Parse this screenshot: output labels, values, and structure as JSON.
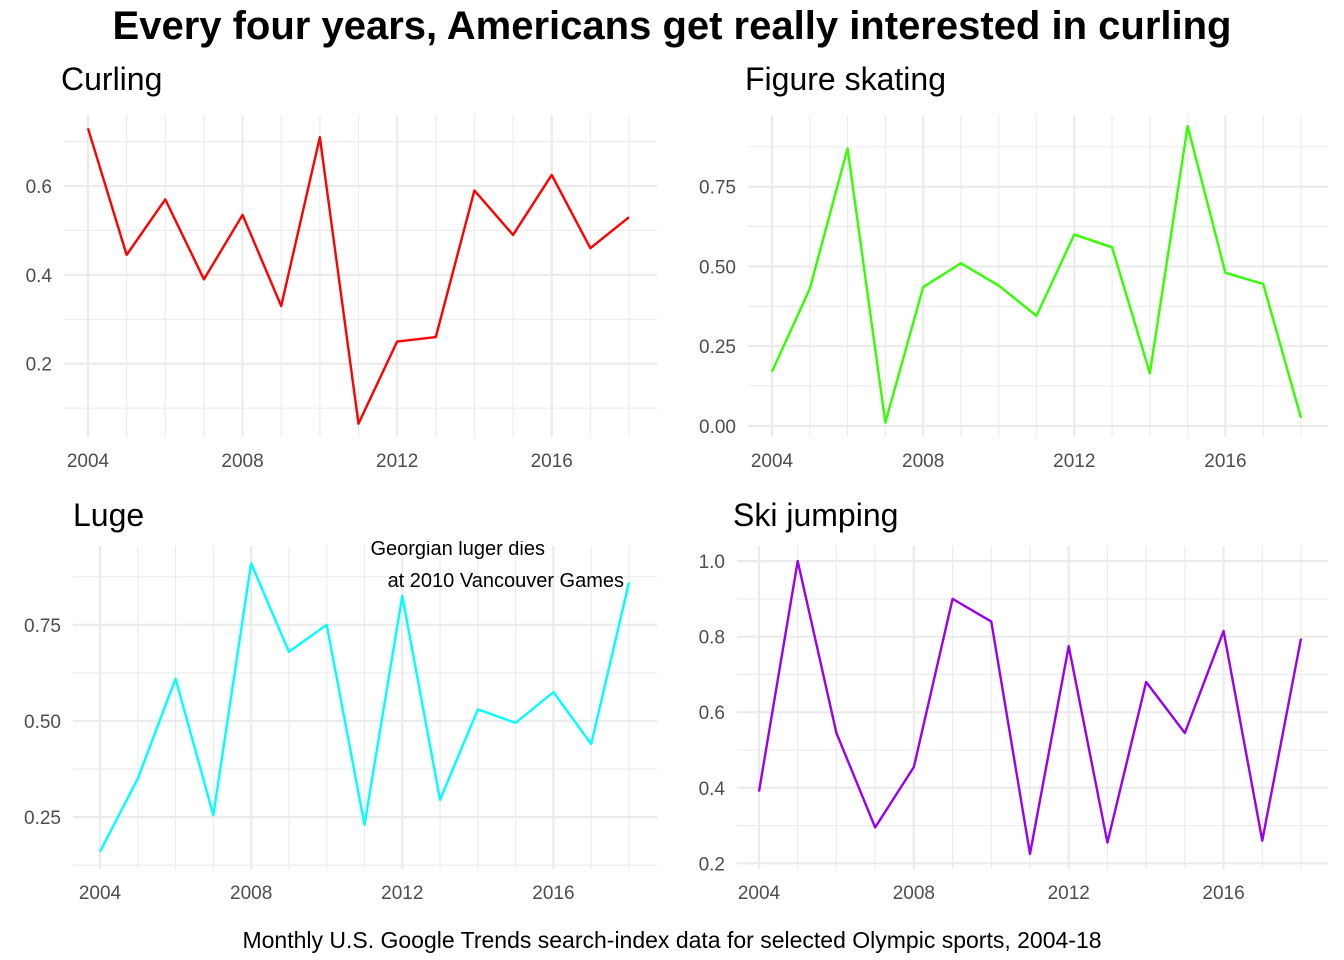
{
  "title": "Every four years, Americans get really interested in curling",
  "caption": "Monthly U.S. Google Trends search-index data for selected Olympic sports, 2004-18",
  "chart_data": [
    {
      "type": "line",
      "title": "Curling",
      "color": "#ff0000",
      "x": [
        2004,
        2005,
        2006,
        2007,
        2008,
        2009,
        2010,
        2011,
        2012,
        2013,
        2014,
        2015,
        2016,
        2017,
        2018
      ],
      "values": [
        0.73,
        0.445,
        0.57,
        0.39,
        0.535,
        0.33,
        0.71,
        0.065,
        0.25,
        0.26,
        0.59,
        0.49,
        0.625,
        0.46,
        0.53
      ],
      "xticks": [
        "2004",
        "2008",
        "2012",
        "2016"
      ],
      "yticks": [
        "0.2",
        "0.4",
        "0.6"
      ],
      "xlim": [
        2004,
        2018
      ],
      "ylim": [
        0.035,
        0.76
      ],
      "grid": true
    },
    {
      "type": "line",
      "title": "Figure skating",
      "color": "#33ff00",
      "x": [
        2004,
        2005,
        2006,
        2007,
        2008,
        2009,
        2010,
        2011,
        2012,
        2013,
        2014,
        2015,
        2016,
        2017,
        2018
      ],
      "values": [
        0.17,
        0.43,
        0.87,
        0.01,
        0.435,
        0.51,
        0.44,
        0.345,
        0.6,
        0.56,
        0.165,
        0.94,
        0.48,
        0.445,
        0.025
      ],
      "xticks": [
        "2004",
        "2008",
        "2012",
        "2016"
      ],
      "yticks": [
        "0.00",
        "0.25",
        "0.50",
        "0.75"
      ],
      "xlim": [
        2004,
        2018
      ],
      "ylim": [
        -0.035,
        0.975
      ],
      "grid": true
    },
    {
      "type": "line",
      "title": "Luge",
      "color": "#00ffff",
      "x": [
        2004,
        2005,
        2006,
        2007,
        2008,
        2009,
        2010,
        2011,
        2012,
        2013,
        2014,
        2015,
        2016,
        2017,
        2018
      ],
      "values": [
        0.16,
        0.35,
        0.61,
        0.255,
        0.91,
        0.68,
        0.75,
        0.23,
        0.825,
        0.295,
        0.53,
        0.495,
        0.575,
        0.44,
        0.86
      ],
      "xticks": [
        "2004",
        "2008",
        "2012",
        "2016"
      ],
      "yticks": [
        "0.25",
        "0.50",
        "0.75"
      ],
      "xlim": [
        2004,
        2018
      ],
      "ylim": [
        0.115,
        0.955
      ],
      "grid": true,
      "annotation": [
        "Georgian luger dies",
        "at 2010 Vancouver Games"
      ]
    },
    {
      "type": "line",
      "title": "Ski jumping",
      "color": "#9900ee",
      "x": [
        2004,
        2005,
        2006,
        2007,
        2008,
        2009,
        2010,
        2011,
        2012,
        2013,
        2014,
        2015,
        2016,
        2017,
        2018
      ],
      "values": [
        0.39,
        1.0,
        0.545,
        0.295,
        0.455,
        0.9,
        0.84,
        0.225,
        0.775,
        0.255,
        0.68,
        0.545,
        0.815,
        0.26,
        0.795
      ],
      "xticks": [
        "2004",
        "2008",
        "2012",
        "2016"
      ],
      "yticks": [
        "0.2",
        "0.4",
        "0.6",
        "0.8",
        "1.0"
      ],
      "xlim": [
        2004,
        2018
      ],
      "ylim": [
        0.185,
        1.04
      ],
      "grid": true
    }
  ]
}
